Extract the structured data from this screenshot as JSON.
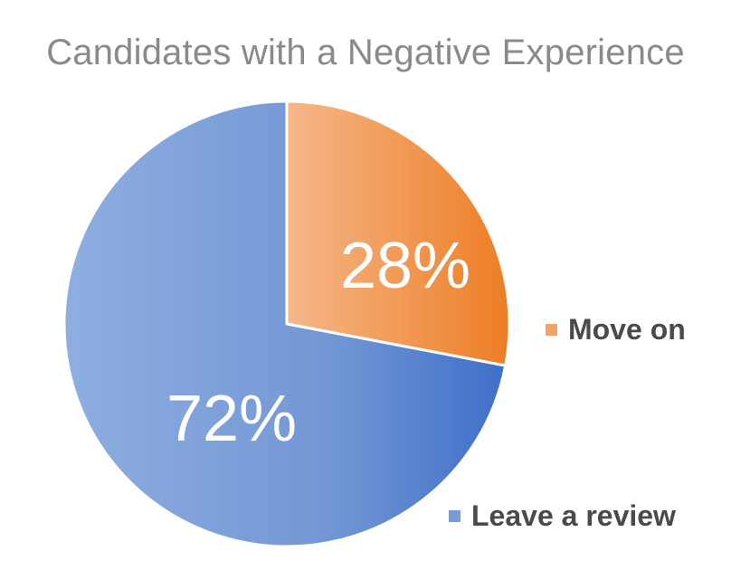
{
  "chart_data": {
    "type": "pie",
    "title": "Candidates with a Negative Experience",
    "slices": [
      {
        "label": "Move on",
        "value": 28,
        "display": "28%",
        "color": "#f0903f"
      },
      {
        "label": "Leave a review",
        "value": 72,
        "display": "72%",
        "color": "#6f95d3"
      }
    ],
    "legend_position": "right"
  },
  "colors": {
    "move_on_light": "#f5b78a",
    "move_on_dark": "#ee7d24",
    "review_light": "#8faee0",
    "review_dark": "#3f6fc8",
    "title": "#8a8a8a",
    "legend_text": "#4a4a4a"
  }
}
